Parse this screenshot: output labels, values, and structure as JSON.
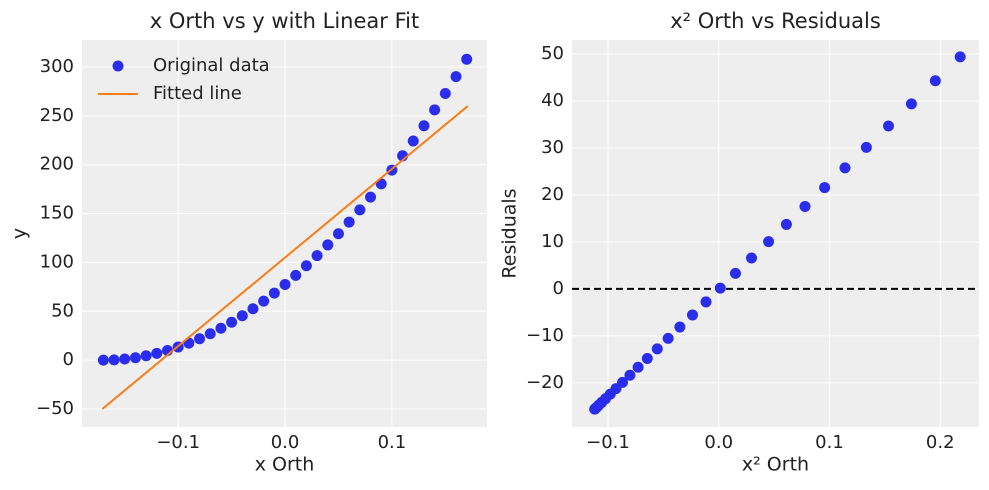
{
  "chart_data": [
    {
      "type": "scatter",
      "title": "x Orth vs y with Linear Fit",
      "xlabel": "x Orth",
      "ylabel": "y",
      "xlim": [
        -0.19,
        0.189
      ],
      "ylim": [
        -68.4,
        327.6
      ],
      "xticks": [
        {
          "value": -0.1,
          "label": "−0.1"
        },
        {
          "value": 0,
          "label": "0.0"
        },
        0.1
      ],
      "yticks": [
        {
          "value": -50,
          "label": "−50"
        },
        0,
        50,
        100,
        150,
        200,
        250,
        300
      ],
      "grid": true,
      "legend": "upper left",
      "series": [
        {
          "name": "Original data",
          "type": "scatter",
          "color": "#2a2eec",
          "x": [
            -0.17,
            -0.16,
            -0.15,
            -0.14,
            -0.13,
            -0.12,
            -0.11,
            -0.1,
            -0.09,
            -0.08,
            -0.07,
            -0.06,
            -0.05,
            -0.04,
            -0.03,
            -0.02,
            -0.01,
            0,
            0.01,
            0.02,
            0.03,
            0.04,
            0.05,
            0.06,
            0.07,
            0.08,
            0.09,
            0.1,
            0.11,
            0.12,
            0.13,
            0.14,
            0.15,
            0.16,
            0.17
          ],
          "values": [
            0.0,
            0.3,
            1.2,
            2.5,
            4.5,
            6.9,
            9.9,
            13.4,
            17.4,
            21.9,
            27.0,
            32.6,
            38.8,
            45.4,
            52.6,
            60.4,
            68.6,
            77.4,
            86.8,
            96.6,
            107.0,
            117.9,
            129.3,
            141.3,
            153.8,
            166.8,
            180.4,
            194.5,
            209.1,
            224.3,
            239.9,
            256.1,
            272.9,
            290.1,
            307.9
          ]
        },
        {
          "name": "Fitted line",
          "type": "line",
          "color": "#fa7c17",
          "x": [
            -0.171,
            0.171
          ],
          "values": [
            -50,
            260
          ]
        }
      ]
    },
    {
      "type": "scatter",
      "title": "x² Orth vs Residuals",
      "xlabel": "x² Orth",
      "ylabel": "Residuals",
      "xlim": [
        -0.1325,
        0.235
      ],
      "ylim": [
        -29.4,
        53
      ],
      "xticks": [
        {
          "value": -0.1,
          "label": "−0.1"
        },
        {
          "value": 0,
          "label": "0.0"
        },
        0.1,
        0.2
      ],
      "yticks": [
        {
          "value": -20,
          "label": "−20"
        },
        {
          "value": -10,
          "label": "−10"
        },
        0,
        10,
        20,
        30,
        40,
        50
      ],
      "grid": true,
      "hline": 0,
      "series": [
        {
          "type": "scatter",
          "color": "#2a2eec",
          "x": [
            -0.112,
            -0.1116,
            -0.1104,
            -0.1085,
            -0.1057,
            -0.1022,
            -0.0979,
            -0.0928,
            -0.0869,
            -0.0802,
            -0.0728,
            -0.0645,
            -0.0555,
            -0.0457,
            -0.0351,
            -0.0237,
            -0.0115,
            0.0014,
            0.0151,
            0.0296,
            0.045,
            0.0611,
            0.0779,
            0.0956,
            0.114,
            0.1333,
            0.1533,
            0.174,
            0.1956,
            0.218
          ],
          "values": [
            -25.6,
            -25.51,
            -25.24,
            -24.8,
            -24.17,
            -23.37,
            -22.39,
            -21.23,
            -19.89,
            -18.38,
            -16.68,
            -14.81,
            -12.76,
            -10.53,
            -8.12,
            -5.54,
            -2.77,
            0.17,
            3.3,
            6.59,
            10.07,
            13.73,
            17.56,
            21.58,
            25.77,
            30.14,
            34.69,
            39.41,
            44.32,
            49.4
          ]
        }
      ]
    }
  ]
}
